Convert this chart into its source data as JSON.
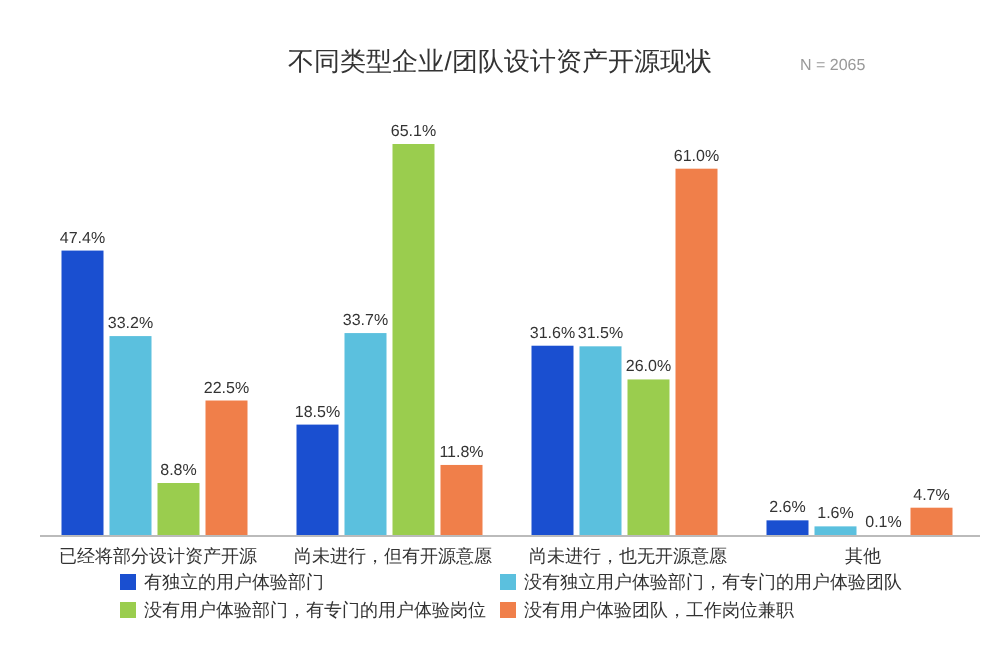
{
  "chart_data": {
    "type": "bar",
    "title": "不同类型企业/团队设计资产开源现状",
    "annotations": [
      "N = 2065"
    ],
    "legend": "bottom",
    "categories": [
      "已经将部分设计资产开源",
      "尚未进行，但有开源意愿",
      "尚未进行，也无开源意愿",
      "其他"
    ],
    "series": [
      {
        "name": "有独立的用户体验部门",
        "color": "#1a4fd0",
        "values": [
          47.4,
          18.5,
          31.6,
          2.6
        ],
        "value_labels": [
          "47.4%",
          "18.5%",
          "31.6%",
          "2.6%"
        ]
      },
      {
        "name": "没有独立用户体验部门，有专门的用户体验团队",
        "color": "#5bc0de",
        "values": [
          33.2,
          33.7,
          31.5,
          1.6
        ],
        "value_labels": [
          "33.2%",
          "33.7%",
          "31.5%",
          "1.6%"
        ]
      },
      {
        "name": "没有用户体验部门，有专门的用户体验岗位",
        "color": "#9acd4e",
        "values": [
          8.8,
          65.1,
          26.0,
          0.1
        ],
        "value_labels": [
          "8.8%",
          "65.1%",
          "26.0%",
          "0.1%"
        ]
      },
      {
        "name": "没有用户体验团队，工作岗位兼职",
        "color": "#f07f4a",
        "values": [
          22.5,
          11.8,
          61.0,
          4.7
        ],
        "value_labels": [
          "22.5%",
          "11.8%",
          "61.0%",
          "4.7%"
        ]
      }
    ]
  }
}
